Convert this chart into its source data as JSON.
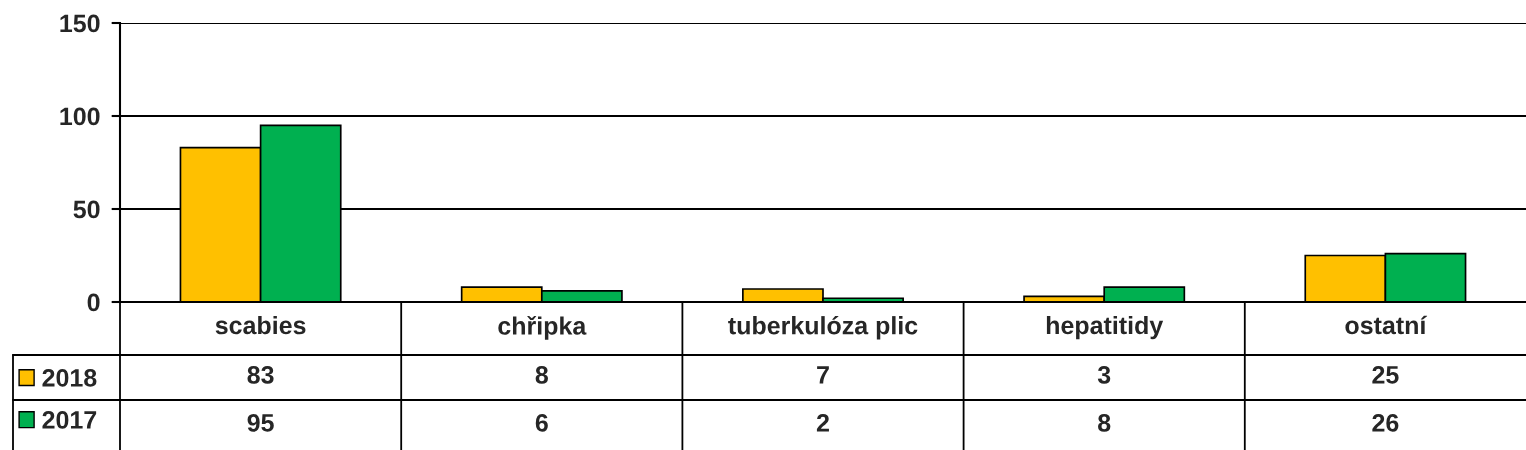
{
  "chart_data": {
    "type": "bar",
    "categories": [
      "scabies",
      "chřipka",
      "tuberkulóza plic",
      "hepatitidy",
      "ostatní"
    ],
    "series": [
      {
        "name": "2018",
        "color": "#ffc000",
        "values": [
          83,
          8,
          7,
          3,
          25
        ]
      },
      {
        "name": "2017",
        "color": "#00b050",
        "values": [
          95,
          6,
          2,
          8,
          26
        ]
      }
    ],
    "ylim": [
      0,
      150
    ],
    "yticks": [
      0,
      50,
      100,
      150
    ],
    "grid": "y",
    "legend": "bottom left",
    "data_labels": true
  }
}
